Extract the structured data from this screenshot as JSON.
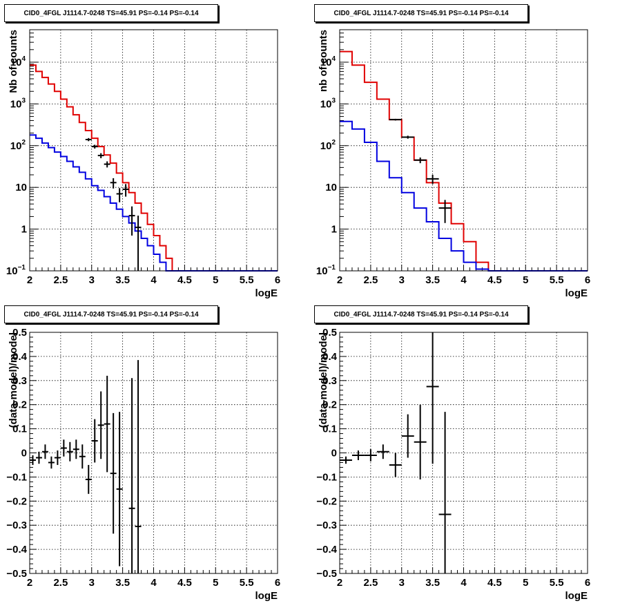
{
  "chart_data": [
    {
      "id": "p0",
      "type": "histogram",
      "title": "CID0_4FGL J1114.7-0248 TS=45.91 PS=-0.14 PS=-0.14",
      "xlabel": "logE",
      "ylabel": "Nb of counts",
      "xlim": [
        2,
        6
      ],
      "ylim": [
        0.1,
        60000
      ],
      "logy": true,
      "grid": true,
      "xticks": [
        "2",
        "2.5",
        "3",
        "3.5",
        "4",
        "4.5",
        "5",
        "5.5",
        "6"
      ],
      "yticks": [
        {
          "v": 0.1,
          "m": "10",
          "e": "−1"
        },
        {
          "v": 1,
          "m": "1",
          "e": ""
        },
        {
          "v": 10,
          "m": "10",
          "e": ""
        },
        {
          "v": 100,
          "m": "10",
          "e": "2"
        },
        {
          "v": 1000,
          "m": "10",
          "e": "3"
        },
        {
          "v": 10000,
          "m": "10",
          "e": "4"
        }
      ],
      "series": [
        {
          "name": "",
          "kind": "step",
          "color": "#e00000",
          "binwidth": 0.1,
          "x": [
            2.0,
            2.1,
            2.2,
            2.3,
            2.4,
            2.5,
            2.6,
            2.7,
            2.8,
            2.9,
            3.0,
            3.1,
            3.2,
            3.3,
            3.4,
            3.5,
            3.6,
            3.7,
            3.8,
            3.9,
            4.0,
            4.1,
            4.2,
            4.3,
            4.4,
            4.5,
            4.6,
            4.7,
            4.8,
            4.9,
            5.0,
            5.1,
            5.2,
            5.3,
            5.4,
            5.5,
            5.6,
            5.7,
            5.8,
            5.9
          ],
          "values": [
            8500,
            6000,
            4300,
            3000,
            2000,
            1300,
            850,
            550,
            360,
            230,
            150,
            95,
            60,
            38,
            22,
            13,
            7.5,
            4.2,
            2.4,
            1.3,
            0.7,
            0.4,
            0.2,
            0.1,
            0.1,
            0.1,
            0.1,
            0.1,
            0.1,
            0.1,
            0.1,
            0.1,
            0.1,
            0.1,
            0.1,
            0.1,
            0.1,
            0.1,
            0.1,
            0.1
          ]
        },
        {
          "name": "",
          "kind": "step",
          "color": "#0000e0",
          "binwidth": 0.1,
          "x": [
            2.0,
            2.1,
            2.2,
            2.3,
            2.4,
            2.5,
            2.6,
            2.7,
            2.8,
            2.9,
            3.0,
            3.1,
            3.2,
            3.3,
            3.4,
            3.5,
            3.6,
            3.7,
            3.8,
            3.9,
            4.0,
            4.1,
            4.2,
            4.3,
            4.4,
            4.5,
            4.6,
            4.7,
            4.8,
            4.9,
            5.0,
            5.1,
            5.2,
            5.3,
            5.4,
            5.5,
            5.6,
            5.7,
            5.8,
            5.9
          ],
          "values": [
            180,
            150,
            115,
            90,
            70,
            55,
            42,
            31,
            23,
            16,
            11,
            8.5,
            6,
            4.2,
            3,
            2,
            1.4,
            0.9,
            0.6,
            0.4,
            0.25,
            0.16,
            0.1,
            0.1,
            0.1,
            0.1,
            0.1,
            0.1,
            0.1,
            0.1,
            0.1,
            0.1,
            0.1,
            0.1,
            0.1,
            0.1,
            0.1,
            0.1,
            0.1,
            0.1
          ]
        },
        {
          "name": "",
          "kind": "errorbar",
          "color": "#000000",
          "halfwidth": 0.05,
          "x": [
            2.95,
            3.05,
            3.15,
            3.25,
            3.35,
            3.45,
            3.55,
            3.65,
            3.75
          ],
          "values": [
            140,
            95,
            58,
            36,
            13,
            7,
            9,
            2.1,
            1.1
          ],
          "err": [
            12,
            10,
            8,
            6,
            3.6,
            2.6,
            3,
            1.4,
            1.0
          ]
        }
      ]
    },
    {
      "id": "p1",
      "type": "histogram",
      "title": "CID0_4FGL J1114.7-0248 TS=45.91 PS=-0.14 PS=-0.14",
      "xlabel": "logE",
      "ylabel": "nb of counts",
      "xlim": [
        2,
        6
      ],
      "ylim": [
        0.1,
        60000
      ],
      "logy": true,
      "grid": true,
      "xticks": [
        "2",
        "2.5",
        "3",
        "3.5",
        "4",
        "4.5",
        "5",
        "5.5",
        "6"
      ],
      "yticks": [
        {
          "v": 0.1,
          "m": "10",
          "e": "−1"
        },
        {
          "v": 1,
          "m": "1",
          "e": ""
        },
        {
          "v": 10,
          "m": "10",
          "e": ""
        },
        {
          "v": 100,
          "m": "10",
          "e": "2"
        },
        {
          "v": 1000,
          "m": "10",
          "e": "3"
        },
        {
          "v": 10000,
          "m": "10",
          "e": "4"
        }
      ],
      "series": [
        {
          "name": "",
          "kind": "step",
          "color": "#e00000",
          "binwidth": 0.2,
          "x": [
            2.0,
            2.2,
            2.4,
            2.6,
            2.8,
            3.0,
            3.2,
            3.4,
            3.6,
            3.8,
            4.0,
            4.2,
            4.4,
            4.6,
            4.8,
            5.0,
            5.2,
            5.4,
            5.6,
            5.8
          ],
          "values": [
            18000,
            8500,
            3300,
            1300,
            420,
            160,
            45,
            13,
            4.2,
            1.35,
            0.5,
            0.16,
            0.1,
            0.1,
            0.1,
            0.1,
            0.1,
            0.1,
            0.1,
            0.1
          ]
        },
        {
          "name": "",
          "kind": "step",
          "color": "#0000e0",
          "binwidth": 0.2,
          "x": [
            2.0,
            2.2,
            2.4,
            2.6,
            2.8,
            3.0,
            3.2,
            3.4,
            3.6,
            3.8,
            4.0,
            4.2,
            4.4,
            4.6,
            4.8,
            5.0,
            5.2,
            5.4,
            5.6,
            5.8
          ],
          "values": [
            380,
            250,
            120,
            42,
            17,
            7.5,
            3.2,
            1.5,
            0.6,
            0.3,
            0.16,
            0.11,
            0.1,
            0.1,
            0.1,
            0.1,
            0.1,
            0.1,
            0.1,
            0.1
          ]
        },
        {
          "name": "",
          "kind": "errorbar",
          "color": "#000000",
          "halfwidth": 0.1,
          "x": [
            2.9,
            3.1,
            3.3,
            3.5,
            3.7
          ],
          "values": [
            420,
            160,
            45,
            16,
            3.2
          ],
          "err": [
            20,
            13,
            7,
            4,
            1.8
          ]
        }
      ]
    },
    {
      "id": "p2",
      "type": "errorbar",
      "title": "CID0_4FGL J1114.7-0248 TS=45.91 PS=-0.14 PS=-0.14",
      "xlabel": "logE",
      "ylabel": "(data-model)/model",
      "xlim": [
        2,
        6
      ],
      "ylim": [
        -0.5,
        0.5
      ],
      "logy": false,
      "grid": true,
      "xticks": [
        "2",
        "2.5",
        "3",
        "3.5",
        "4",
        "4.5",
        "5",
        "5.5",
        "6"
      ],
      "yticks": [
        {
          "v": -0.5,
          "m": "−0.5",
          "e": ""
        },
        {
          "v": -0.4,
          "m": "−0.4",
          "e": ""
        },
        {
          "v": -0.3,
          "m": "−0.3",
          "e": ""
        },
        {
          "v": -0.2,
          "m": "−0.2",
          "e": ""
        },
        {
          "v": -0.1,
          "m": "−0.1",
          "e": ""
        },
        {
          "v": 0,
          "m": "0",
          "e": ""
        },
        {
          "v": 0.1,
          "m": "0.1",
          "e": ""
        },
        {
          "v": 0.2,
          "m": "0.2",
          "e": ""
        },
        {
          "v": 0.3,
          "m": "0.3",
          "e": ""
        },
        {
          "v": 0.4,
          "m": "0.4",
          "e": ""
        },
        {
          "v": 0.5,
          "m": "0.5",
          "e": ""
        }
      ],
      "series": [
        {
          "name": "",
          "kind": "errorbar",
          "color": "#000000",
          "halfwidth": 0.05,
          "x": [
            2.05,
            2.15,
            2.25,
            2.35,
            2.45,
            2.55,
            2.65,
            2.75,
            2.85,
            2.95,
            3.05,
            3.15,
            3.25,
            3.35,
            3.45,
            3.65,
            3.75
          ],
          "values": [
            -0.03,
            -0.02,
            0.005,
            -0.04,
            -0.02,
            0.02,
            0.005,
            0.015,
            -0.015,
            -0.11,
            0.05,
            0.115,
            0.12,
            -0.085,
            -0.15,
            -0.23,
            -0.305
          ],
          "err": [
            0.02,
            0.025,
            0.03,
            0.025,
            0.03,
            0.035,
            0.04,
            0.04,
            0.05,
            0.06,
            0.09,
            0.14,
            0.2,
            0.25,
            0.32,
            0.54,
            0.69
          ]
        }
      ]
    },
    {
      "id": "p3",
      "type": "errorbar",
      "title": "CID0_4FGL J1114.7-0248 TS=45.91 PS=-0.14 PS=-0.14",
      "xlabel": "logE",
      "ylabel": "(data-model)/model",
      "xlim": [
        2,
        6
      ],
      "ylim": [
        -0.5,
        0.5
      ],
      "logy": false,
      "grid": true,
      "xticks": [
        "2",
        "2.5",
        "3",
        "3.5",
        "4",
        "4.5",
        "5",
        "5.5",
        "6"
      ],
      "yticks": [
        {
          "v": -0.5,
          "m": "−0.5",
          "e": ""
        },
        {
          "v": -0.4,
          "m": "−0.4",
          "e": ""
        },
        {
          "v": -0.3,
          "m": "−0.3",
          "e": ""
        },
        {
          "v": -0.2,
          "m": "−0.2",
          "e": ""
        },
        {
          "v": -0.1,
          "m": "−0.1",
          "e": ""
        },
        {
          "v": 0,
          "m": "0",
          "e": ""
        },
        {
          "v": 0.1,
          "m": "0.1",
          "e": ""
        },
        {
          "v": 0.2,
          "m": "0.2",
          "e": ""
        },
        {
          "v": 0.3,
          "m": "0.3",
          "e": ""
        },
        {
          "v": 0.4,
          "m": "0.4",
          "e": ""
        },
        {
          "v": 0.5,
          "m": "0.5",
          "e": ""
        }
      ],
      "series": [
        {
          "name": "",
          "kind": "errorbar",
          "color": "#000000",
          "halfwidth": 0.1,
          "x": [
            2.1,
            2.3,
            2.5,
            2.7,
            2.9,
            3.1,
            3.3,
            3.5,
            3.7
          ],
          "values": [
            -0.03,
            -0.01,
            -0.01,
            0.005,
            -0.05,
            0.07,
            0.045,
            0.275,
            -0.255
          ],
          "err": [
            0.015,
            0.02,
            0.025,
            0.03,
            0.05,
            0.09,
            0.155,
            0.32,
            0.425
          ]
        }
      ]
    }
  ]
}
